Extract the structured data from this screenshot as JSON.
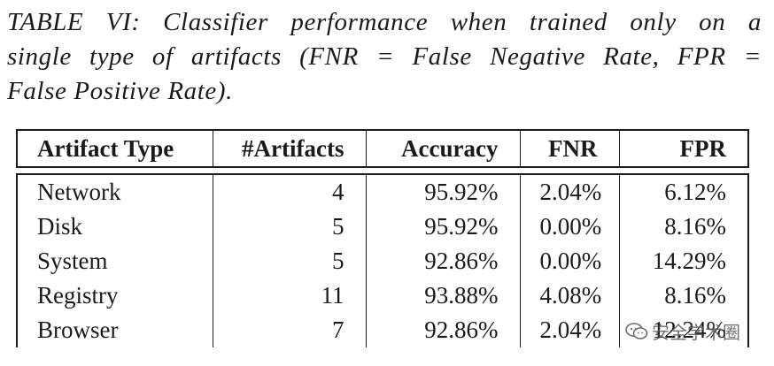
{
  "caption": {
    "line1": "TABLE VI: Classifier performance when trained only on a",
    "line2": "single type of artifacts (FNR = False Negative Rate, FPR =",
    "line3": "False Positive Rate)."
  },
  "table": {
    "headers": [
      "Artifact Type",
      "#Artifacts",
      "Accuracy",
      "FNR",
      "FPR"
    ],
    "rows": [
      [
        "Network",
        "4",
        "95.92%",
        "2.04%",
        "6.12%"
      ],
      [
        "Disk",
        "5",
        "95.92%",
        "0.00%",
        "8.16%"
      ],
      [
        "System",
        "5",
        "92.86%",
        "0.00%",
        "14.29%"
      ],
      [
        "Registry",
        "11",
        "93.88%",
        "4.08%",
        "8.16%"
      ],
      [
        "Browser",
        "7",
        "92.86%",
        "2.04%",
        "12.24%"
      ]
    ]
  },
  "watermark": {
    "icon": "wechat-icon",
    "text": "安全学术圈"
  }
}
